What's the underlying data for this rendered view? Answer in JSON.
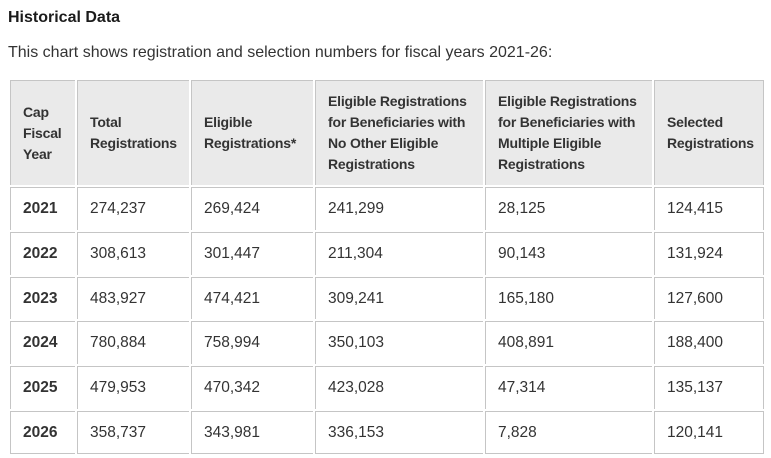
{
  "page": {
    "title": "Historical Data",
    "subtitle": "This chart shows registration and selection numbers for fiscal years 2021-26:"
  },
  "colors": {
    "border": "#c5c5c5",
    "header_bg": "#eaeaea",
    "text": "#333333",
    "title": "#1b1b1b"
  },
  "chart_data": {
    "type": "table",
    "title": "Historical Data",
    "columns": [
      "Cap Fiscal Year",
      "Total Registrations",
      "Eligible Registrations*",
      "Eligible Registrations for Beneficiaries with No Other Eligible Registrations",
      "Eligible Registrations for Beneficiaries with Multiple Eligible Registrations",
      "Selected Registrations"
    ],
    "rows": [
      [
        "2021",
        "274,237",
        "269,424",
        "241,299",
        "28,125",
        "124,415"
      ],
      [
        "2022",
        "308,613",
        "301,447",
        "211,304",
        "90,143",
        "131,924"
      ],
      [
        "2023",
        "483,927",
        "474,421",
        "309,241",
        "165,180",
        "127,600"
      ],
      [
        "2024",
        "780,884",
        "758,994",
        "350,103",
        "408,891",
        "188,400"
      ],
      [
        "2025",
        "479,953",
        "470,342",
        "423,028",
        "47,314",
        "135,137"
      ],
      [
        "2026",
        "358,737",
        "343,981",
        "336,153",
        "7,828",
        "120,141"
      ]
    ]
  }
}
